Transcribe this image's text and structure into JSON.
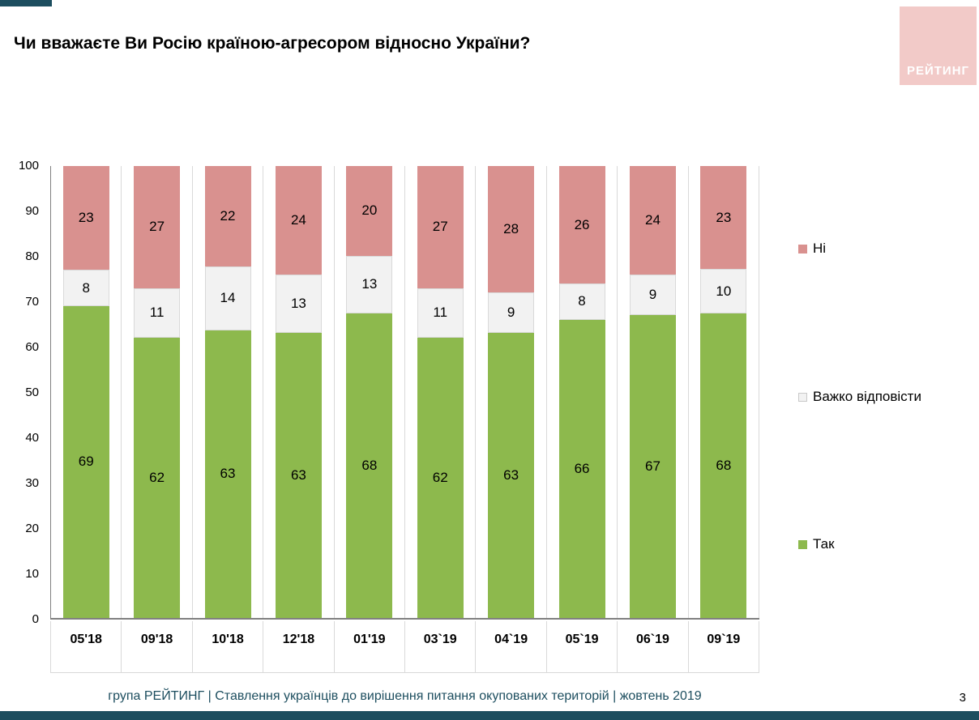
{
  "page": {
    "title": "Чи вважаєте Ви Росію країною-агресором відносно України?",
    "logo_text": "РЕЙТИНГ",
    "footer": "група РЕЙТИНГ | Ставлення українців до вирішення питання окупованих територій | жовтень 2019",
    "page_number": "3"
  },
  "colors": {
    "accent_bar": "#1d4e5f",
    "logo_background": "#f2cac8",
    "yes_green": "#8db94d",
    "no_pink": "#d9918f",
    "neutral_gray": "#f2f2f2",
    "gridline": "#d9d9d9"
  },
  "chart_data": {
    "type": "bar",
    "subtype": "stacked-100",
    "categories": [
      "05'18",
      "09'18",
      "10'18",
      "12'18",
      "01'19",
      "03`19",
      "04`19",
      "05`19",
      "06`19",
      "09`19"
    ],
    "series": [
      {
        "name": "Так",
        "color": "#8db94d",
        "values": [
          69,
          62,
          63,
          63,
          68,
          62,
          63,
          66,
          67,
          68
        ]
      },
      {
        "name": "Важко відповісти",
        "color": "#f2f2f2",
        "values": [
          8,
          11,
          14,
          13,
          13,
          11,
          9,
          8,
          9,
          10
        ]
      },
      {
        "name": "Ні",
        "color": "#d9918f",
        "values": [
          23,
          27,
          22,
          24,
          20,
          27,
          28,
          26,
          24,
          23
        ]
      }
    ],
    "y_ticks": [
      0,
      10,
      20,
      30,
      40,
      50,
      60,
      70,
      80,
      90,
      100
    ],
    "ylim": [
      0,
      100
    ],
    "grid": "vertical",
    "legend_position": "right",
    "value_labels": "inside-segments"
  }
}
